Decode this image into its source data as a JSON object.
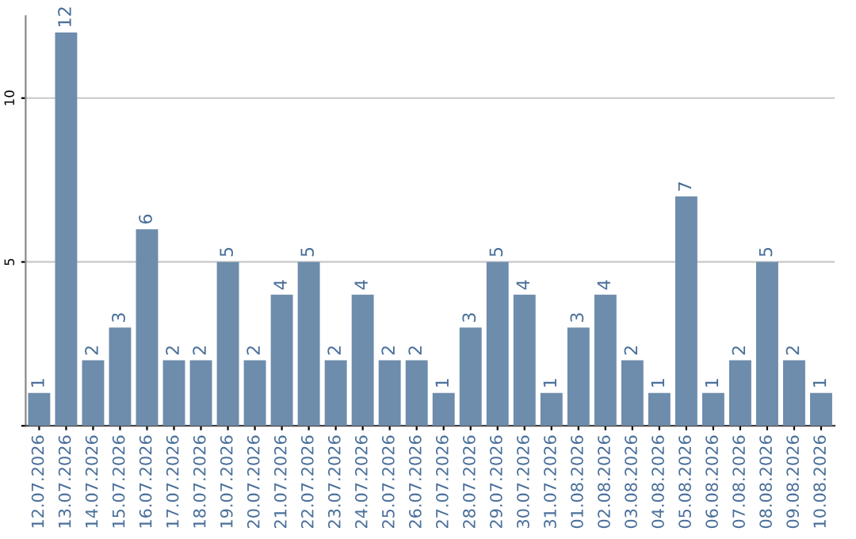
{
  "chart_data": {
    "type": "bar",
    "categories": [
      "12.07.2026",
      "13.07.2026",
      "14.07.2026",
      "15.07.2026",
      "16.07.2026",
      "17.07.2026",
      "18.07.2026",
      "19.07.2026",
      "20.07.2026",
      "21.07.2026",
      "22.07.2026",
      "23.07.2026",
      "24.07.2026",
      "25.07.2026",
      "26.07.2026",
      "27.07.2026",
      "28.07.2026",
      "29.07.2026",
      "30.07.2026",
      "31.07.2026",
      "01.08.2026",
      "02.08.2026",
      "03.08.2026",
      "04.08.2026",
      "05.08.2026",
      "06.08.2026",
      "07.08.2026",
      "08.08.2026",
      "09.08.2026",
      "10.08.2026"
    ],
    "values": [
      1,
      12,
      2,
      3,
      6,
      2,
      2,
      5,
      2,
      4,
      5,
      2,
      4,
      2,
      2,
      1,
      3,
      5,
      4,
      1,
      3,
      4,
      2,
      1,
      7,
      1,
      2,
      5,
      2,
      1
    ],
    "color": "#6e8cab",
    "ylim": [
      0,
      12.5
    ],
    "yticks": [
      {
        "value": 0,
        "label": null
      },
      5,
      10
    ],
    "grid": "y",
    "data_labels": true
  }
}
